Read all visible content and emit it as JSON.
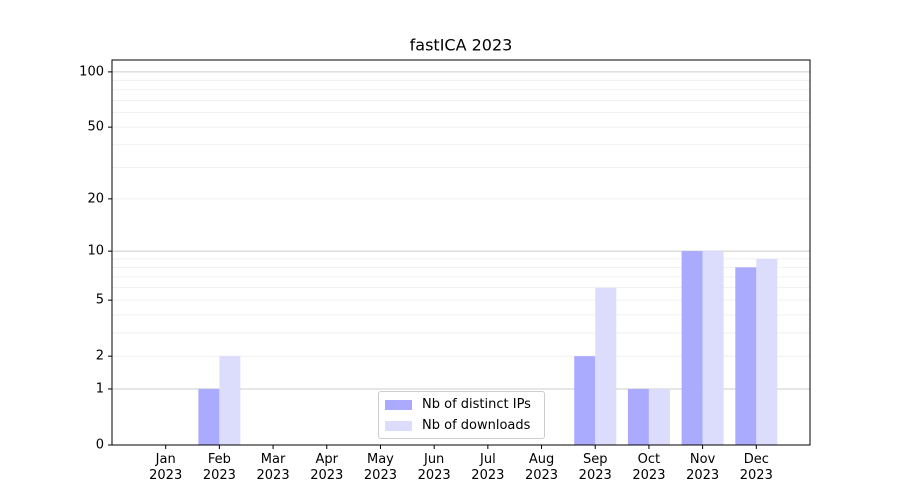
{
  "chart_data": {
    "type": "bar",
    "title": "fastICA 2023",
    "categories": [
      "Jan 2023",
      "Feb 2023",
      "Mar 2023",
      "Apr 2023",
      "May 2023",
      "Jun 2023",
      "Jul 2023",
      "Aug 2023",
      "Sep 2023",
      "Oct 2023",
      "Nov 2023",
      "Dec 2023"
    ],
    "series": [
      {
        "name": "Nb of distinct IPs",
        "color": "#aaaaff",
        "values": [
          0,
          1,
          0,
          0,
          0,
          0,
          0,
          0,
          2,
          1,
          10,
          8
        ]
      },
      {
        "name": "Nb of downloads",
        "color": "#dcdcfc",
        "values": [
          0,
          2,
          0,
          0,
          0,
          0,
          0,
          0,
          6,
          1,
          10,
          9
        ]
      }
    ],
    "y_scale": "log1p",
    "ylim": [
      0,
      116
    ],
    "yticks": [
      0,
      1,
      2,
      5,
      10,
      20,
      50,
      100
    ],
    "major_grid": [
      1,
      10,
      100
    ],
    "minor_grid": [
      2,
      3,
      4,
      5,
      6,
      7,
      8,
      9,
      20,
      30,
      40,
      50,
      60,
      70,
      80,
      90
    ],
    "grid": true,
    "legend": "lower center"
  }
}
